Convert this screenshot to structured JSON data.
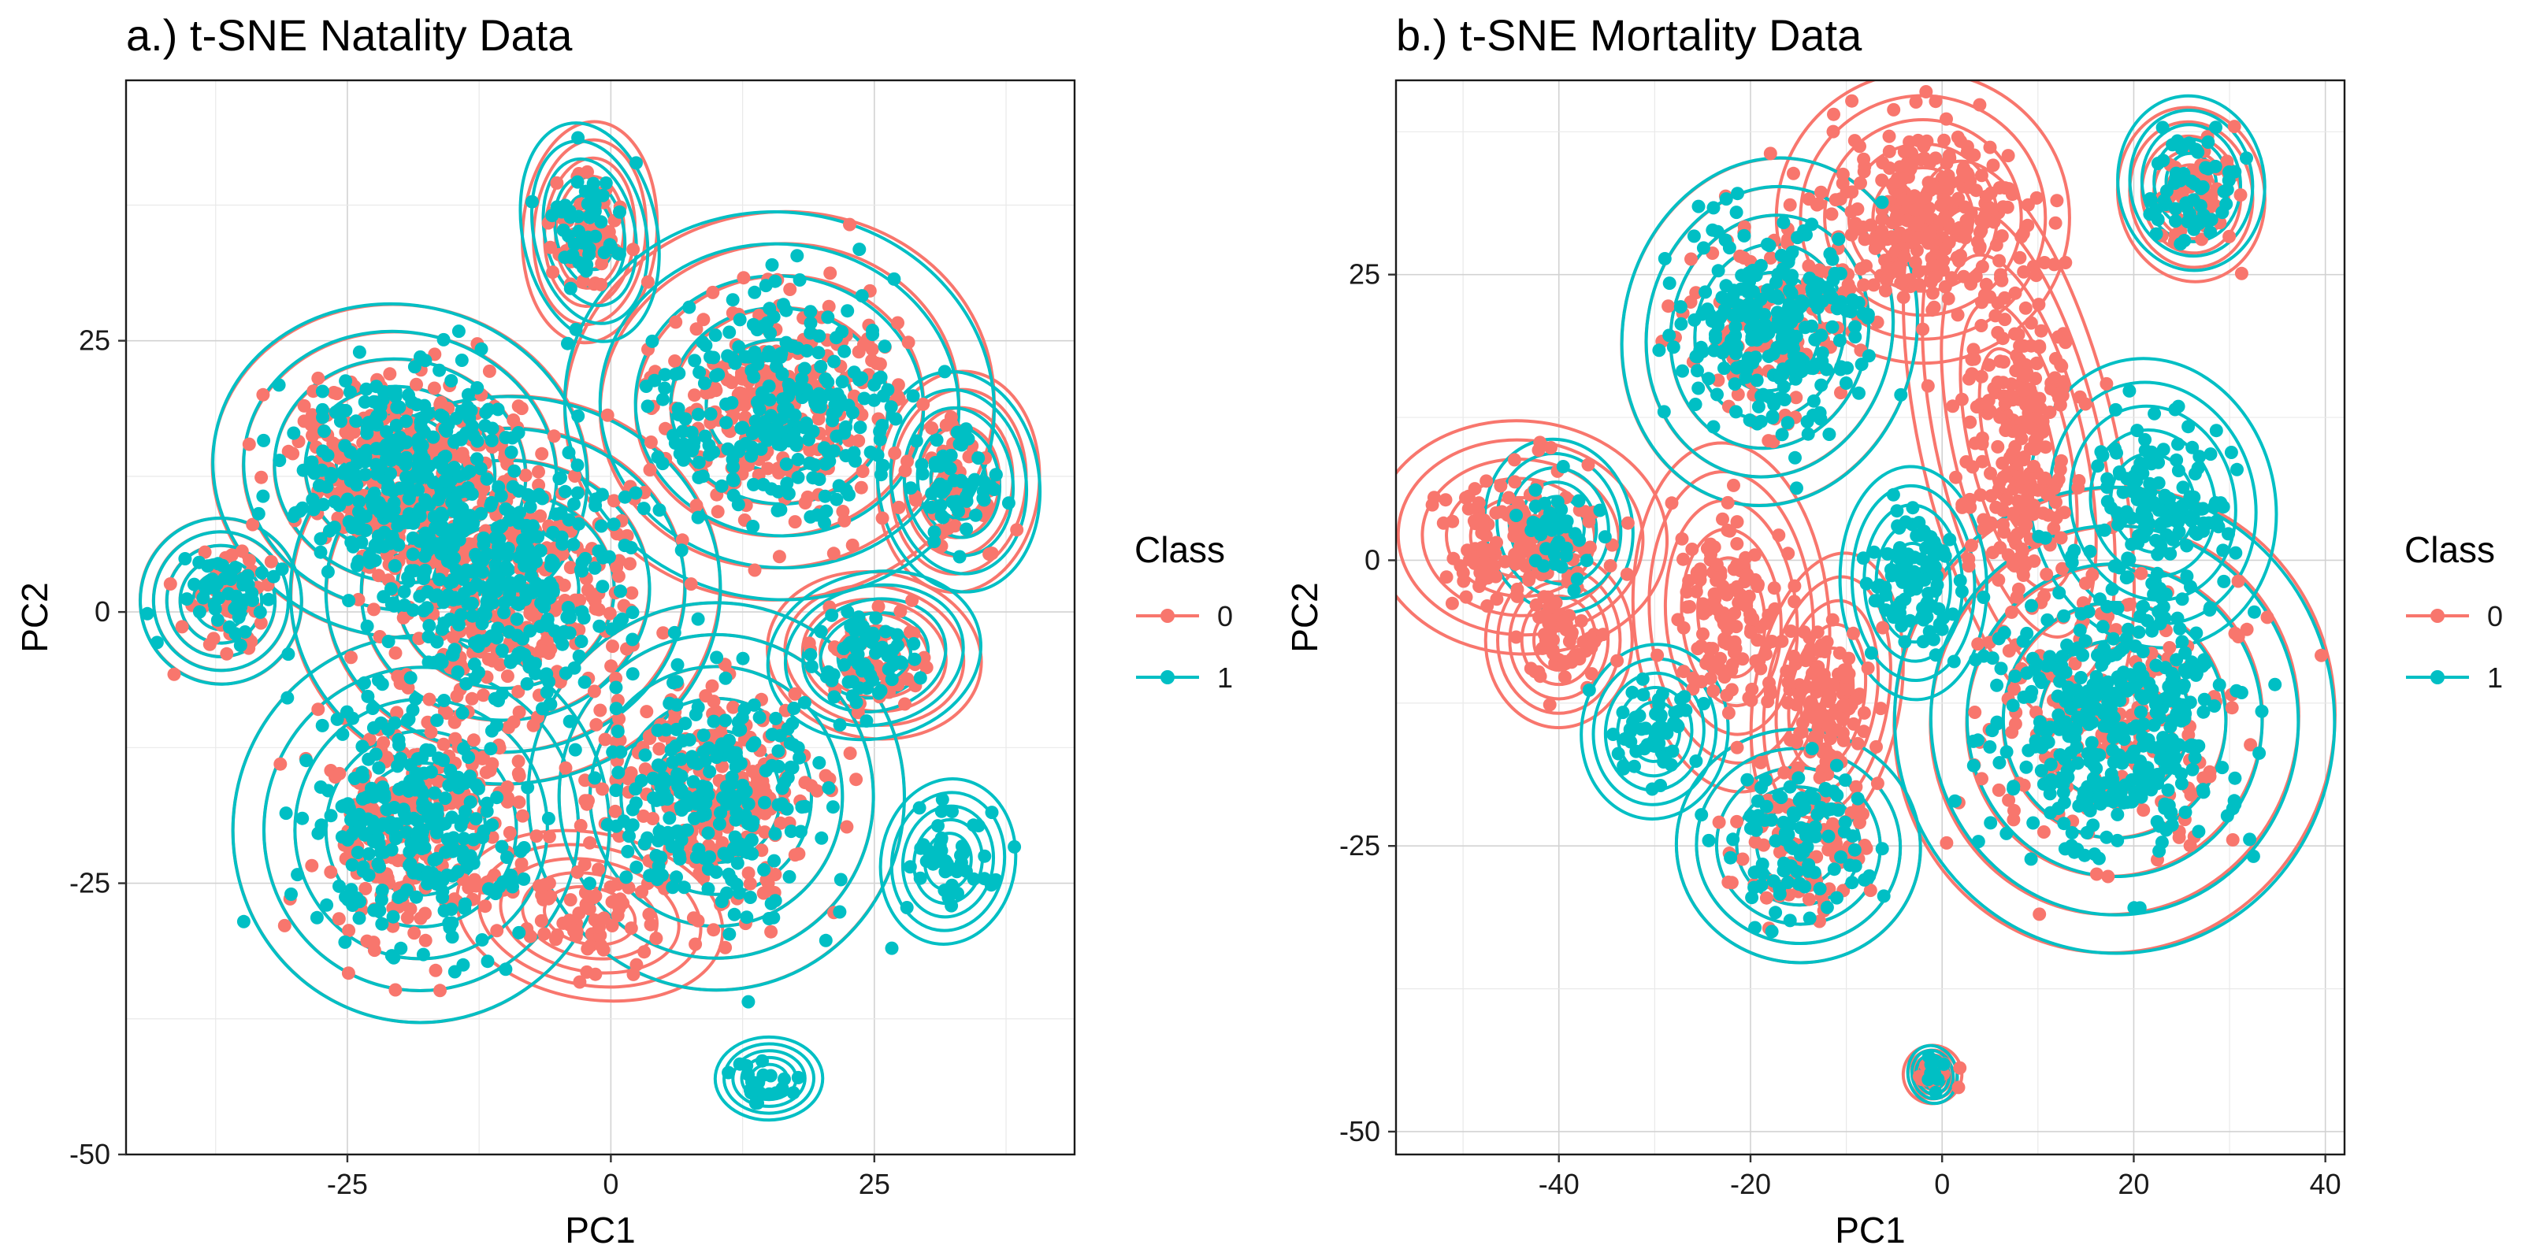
{
  "colors": {
    "class0": "#F8766D",
    "class1": "#00BFC4"
  },
  "chart_data": [
    {
      "type": "scatter",
      "title": "a.) t-SNE Natality Data",
      "xlabel": "PC1",
      "ylabel": "PC2",
      "xlim": [
        -46,
        44
      ],
      "ylim": [
        -50,
        49
      ],
      "xticks": [
        -25,
        0,
        25
      ],
      "yticks": [
        -50,
        -25,
        0,
        25
      ],
      "xtick_labels": [
        "-25",
        "0",
        "25"
      ],
      "ytick_labels": [
        "-50",
        "-25",
        "0",
        "25"
      ],
      "grid": true,
      "legend": {
        "title": "Class",
        "position": "right",
        "entries": [
          "0",
          "1"
        ]
      },
      "series": [
        {
          "name": "0",
          "color": "#F8766D",
          "clusters": [
            {
              "x": -20,
              "y": 13,
              "sx": 7,
              "sy": 6,
              "n": 320
            },
            {
              "x": -10,
              "y": 2,
              "sx": 8,
              "sy": 7,
              "n": 320
            },
            {
              "x": -18,
              "y": -20,
              "sx": 7,
              "sy": 7,
              "n": 260
            },
            {
              "x": 10,
              "y": -17,
              "sx": 7,
              "sy": 7,
              "n": 260
            },
            {
              "x": 16,
              "y": 19,
              "sx": 8,
              "sy": 7,
              "n": 260
            },
            {
              "x": -37,
              "y": 1,
              "sx": 3,
              "sy": 3,
              "n": 50
            },
            {
              "x": -2,
              "y": 35,
              "sx": 2.5,
              "sy": 4,
              "n": 50
            },
            {
              "x": 25,
              "y": -4,
              "sx": 4,
              "sy": 3,
              "n": 60
            },
            {
              "x": 33,
              "y": 12,
              "sx": 3,
              "sy": 4,
              "n": 50
            },
            {
              "x": -2,
              "y": -28,
              "sx": 5,
              "sy": 3,
              "n": 60
            }
          ]
        },
        {
          "name": "1",
          "color": "#00BFC4",
          "clusters": [
            {
              "x": -20,
              "y": 13,
              "sx": 7,
              "sy": 6,
              "n": 300
            },
            {
              "x": -10,
              "y": 2,
              "sx": 8,
              "sy": 7,
              "n": 280
            },
            {
              "x": -18,
              "y": -20,
              "sx": 7,
              "sy": 7,
              "n": 260
            },
            {
              "x": 10,
              "y": -17,
              "sx": 7,
              "sy": 7,
              "n": 240
            },
            {
              "x": 16,
              "y": 19,
              "sx": 8,
              "sy": 7,
              "n": 260
            },
            {
              "x": -37,
              "y": 1,
              "sx": 3,
              "sy": 3,
              "n": 50
            },
            {
              "x": -2,
              "y": 35,
              "sx": 2.5,
              "sy": 4,
              "n": 50
            },
            {
              "x": 25,
              "y": -4,
              "sx": 4,
              "sy": 3,
              "n": 60
            },
            {
              "x": 33,
              "y": 12,
              "sx": 3,
              "sy": 4,
              "n": 50
            },
            {
              "x": 32,
              "y": -23,
              "sx": 2.5,
              "sy": 3,
              "n": 50
            },
            {
              "x": 15,
              "y": -43,
              "sx": 2,
              "sy": 1.5,
              "n": 20
            }
          ]
        }
      ]
    },
    {
      "type": "scatter",
      "title": "b.) t-SNE Mortality Data",
      "xlabel": "PC1",
      "ylabel": "PC2",
      "xlim": [
        -57,
        42
      ],
      "ylim": [
        -52,
        42
      ],
      "xticks": [
        -40,
        -20,
        0,
        20,
        40
      ],
      "yticks": [
        -50,
        -25,
        0,
        25
      ],
      "xtick_labels": [
        "-40",
        "-20",
        "0",
        "20",
        "40"
      ],
      "ytick_labels": [
        "-50",
        "-25",
        "0",
        "25"
      ],
      "grid": true,
      "legend": {
        "title": "Class",
        "position": "right",
        "entries": [
          "0",
          "1"
        ]
      },
      "series": [
        {
          "name": "0",
          "color": "#F8766D",
          "clusters": [
            {
              "x": -2,
              "y": 30,
              "sx": 6,
              "sy": 5,
              "n": 300
            },
            {
              "x": 8,
              "y": 10,
              "sx": 4,
              "sy": 10,
              "n": 260
            },
            {
              "x": -44,
              "y": 2,
              "sx": 6,
              "sy": 4,
              "n": 160
            },
            {
              "x": -40,
              "y": -7,
              "sx": 3,
              "sy": 3,
              "n": 60
            },
            {
              "x": -22,
              "y": -5,
              "sx": 4,
              "sy": 6,
              "n": 140
            },
            {
              "x": -12,
              "y": -12,
              "sx": 3,
              "sy": 5,
              "n": 120
            },
            {
              "x": -18,
              "y": 20,
              "sx": 6,
              "sy": 6,
              "n": 150
            },
            {
              "x": -15,
              "y": -25,
              "sx": 5,
              "sy": 4,
              "n": 90
            },
            {
              "x": 18,
              "y": -14,
              "sx": 9,
              "sy": 8,
              "n": 200
            },
            {
              "x": 26,
              "y": 32,
              "sx": 3,
              "sy": 3,
              "n": 50
            },
            {
              "x": -1,
              "y": -45,
              "sx": 1.2,
              "sy": 1,
              "n": 12
            }
          ]
        },
        {
          "name": "1",
          "color": "#00BFC4",
          "clusters": [
            {
              "x": -18,
              "y": 20,
              "sx": 6,
              "sy": 6,
              "n": 260
            },
            {
              "x": 18,
              "y": -14,
              "sx": 9,
              "sy": 8,
              "n": 420
            },
            {
              "x": 22,
              "y": 5,
              "sx": 5,
              "sy": 5,
              "n": 140
            },
            {
              "x": -3,
              "y": -2,
              "sx": 3,
              "sy": 4,
              "n": 100
            },
            {
              "x": -15,
              "y": -25,
              "sx": 5,
              "sy": 4,
              "n": 110
            },
            {
              "x": -30,
              "y": -15,
              "sx": 3,
              "sy": 3,
              "n": 60
            },
            {
              "x": -40,
              "y": 3,
              "sx": 3,
              "sy": 3,
              "n": 40
            },
            {
              "x": 26,
              "y": 33,
              "sx": 3,
              "sy": 3,
              "n": 60
            },
            {
              "x": -1,
              "y": -45,
              "sx": 1,
              "sy": 1,
              "n": 10
            }
          ]
        }
      ]
    }
  ]
}
